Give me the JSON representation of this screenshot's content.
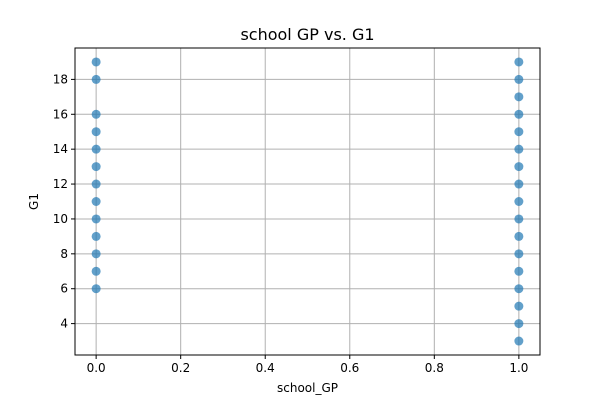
{
  "chart_data": {
    "type": "scatter",
    "title": "school GP vs. G1",
    "xlabel": "school_GP",
    "ylabel": "G1",
    "xlim": [
      -0.05,
      1.05
    ],
    "ylim": [
      2.2,
      19.8
    ],
    "xticks": [
      0.0,
      0.2,
      0.4,
      0.6,
      0.8,
      1.0
    ],
    "xtick_labels": [
      "0.0",
      "0.2",
      "0.4",
      "0.6",
      "0.8",
      "1.0"
    ],
    "yticks": [
      4,
      6,
      8,
      10,
      12,
      14,
      16,
      18
    ],
    "ytick_labels": [
      "4",
      "6",
      "8",
      "10",
      "12",
      "14",
      "16",
      "18"
    ],
    "grid": true,
    "marker_color": "#1f77b4",
    "series": [
      {
        "points": [
          {
            "x": 0,
            "y": 6
          },
          {
            "x": 0,
            "y": 7
          },
          {
            "x": 0,
            "y": 8
          },
          {
            "x": 0,
            "y": 9
          },
          {
            "x": 0,
            "y": 10
          },
          {
            "x": 0,
            "y": 11
          },
          {
            "x": 0,
            "y": 12
          },
          {
            "x": 0,
            "y": 13
          },
          {
            "x": 0,
            "y": 14
          },
          {
            "x": 0,
            "y": 15
          },
          {
            "x": 0,
            "y": 16
          },
          {
            "x": 0,
            "y": 18
          },
          {
            "x": 0,
            "y": 19
          },
          {
            "x": 1,
            "y": 3
          },
          {
            "x": 1,
            "y": 4
          },
          {
            "x": 1,
            "y": 5
          },
          {
            "x": 1,
            "y": 6
          },
          {
            "x": 1,
            "y": 7
          },
          {
            "x": 1,
            "y": 8
          },
          {
            "x": 1,
            "y": 9
          },
          {
            "x": 1,
            "y": 10
          },
          {
            "x": 1,
            "y": 11
          },
          {
            "x": 1,
            "y": 12
          },
          {
            "x": 1,
            "y": 13
          },
          {
            "x": 1,
            "y": 14
          },
          {
            "x": 1,
            "y": 15
          },
          {
            "x": 1,
            "y": 16
          },
          {
            "x": 1,
            "y": 17
          },
          {
            "x": 1,
            "y": 18
          },
          {
            "x": 1,
            "y": 19
          }
        ]
      }
    ]
  }
}
